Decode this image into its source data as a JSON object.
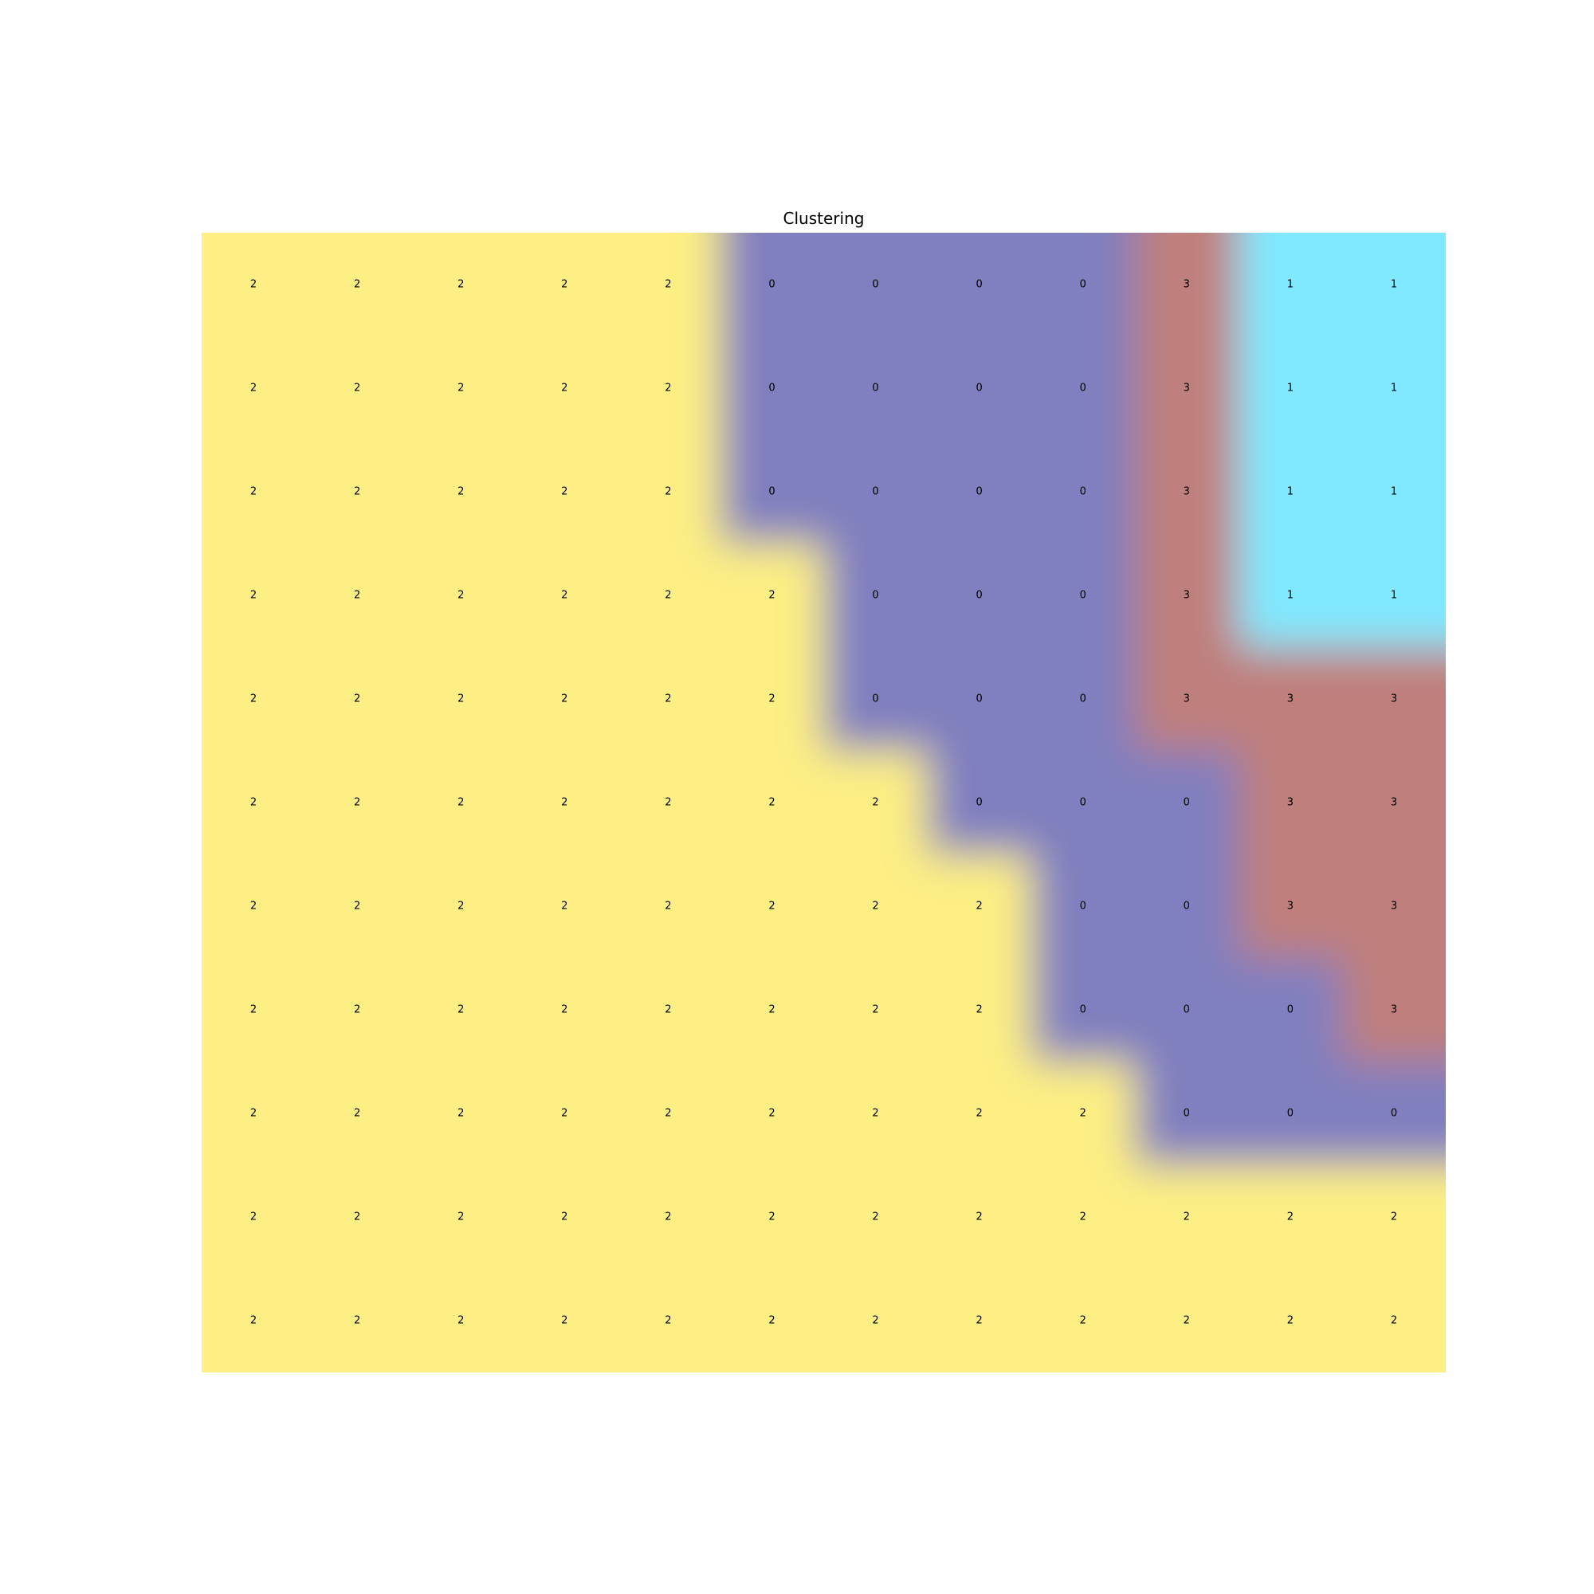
{
  "chart_data": {
    "type": "heatmap",
    "title": "Clustering",
    "rows": 11,
    "cols": 12,
    "values": [
      [
        2,
        2,
        2,
        2,
        2,
        0,
        0,
        0,
        0,
        3,
        1,
        1
      ],
      [
        2,
        2,
        2,
        2,
        2,
        0,
        0,
        0,
        0,
        3,
        1,
        1
      ],
      [
        2,
        2,
        2,
        2,
        2,
        0,
        0,
        0,
        0,
        3,
        1,
        1
      ],
      [
        2,
        2,
        2,
        2,
        2,
        2,
        0,
        0,
        0,
        3,
        1,
        1
      ],
      [
        2,
        2,
        2,
        2,
        2,
        2,
        0,
        0,
        0,
        3,
        3,
        3
      ],
      [
        2,
        2,
        2,
        2,
        2,
        2,
        2,
        0,
        0,
        0,
        3,
        3
      ],
      [
        2,
        2,
        2,
        2,
        2,
        2,
        2,
        2,
        0,
        0,
        3,
        3
      ],
      [
        2,
        2,
        2,
        2,
        2,
        2,
        2,
        2,
        0,
        0,
        0,
        3
      ],
      [
        2,
        2,
        2,
        2,
        2,
        2,
        2,
        2,
        2,
        0,
        0,
        0
      ],
      [
        2,
        2,
        2,
        2,
        2,
        2,
        2,
        2,
        2,
        2,
        2,
        2
      ],
      [
        2,
        2,
        2,
        2,
        2,
        2,
        2,
        2,
        2,
        2,
        2,
        2
      ]
    ],
    "cluster_colors": {
      "0": "#807fbf",
      "1": "#80e9ff",
      "2": "#fdef83",
      "3": "#bf7f7b"
    },
    "grid": false,
    "axes_visible": false,
    "interpolation": "smooth"
  }
}
